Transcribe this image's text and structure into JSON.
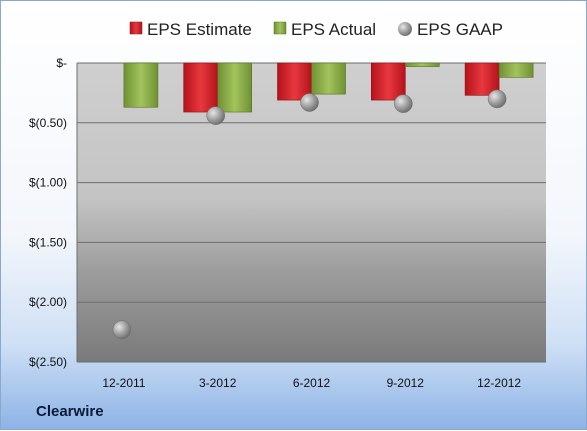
{
  "company_label": "Clearwire",
  "colors": {
    "estimate": "#d8202a",
    "actual": "#8db04a",
    "gaap": "#9a9a9a"
  },
  "chart_data": {
    "type": "bar",
    "categories": [
      "12-2011",
      "3-2012",
      "6-2012",
      "9-2012",
      "12-2012"
    ],
    "series": [
      {
        "name": "EPS Estimate",
        "kind": "bar",
        "values": [
          null,
          -0.41,
          -0.31,
          -0.31,
          -0.27
        ]
      },
      {
        "name": "EPS Actual",
        "kind": "bar",
        "values": [
          -0.37,
          -0.41,
          -0.26,
          -0.03,
          -0.12
        ]
      },
      {
        "name": "EPS GAAP",
        "kind": "marker",
        "values": [
          -2.23,
          -0.44,
          -0.33,
          -0.34,
          -0.3
        ]
      }
    ],
    "ylim": [
      -2.5,
      0
    ],
    "yticks": [
      0,
      -0.5,
      -1.0,
      -1.5,
      -2.0,
      -2.5
    ],
    "ytick_labels": [
      "$-",
      "$(0.50)",
      "$(1.00)",
      "$(1.50)",
      "$(2.00)",
      "$(2.50)"
    ],
    "legend_position": "top",
    "grid": true,
    "title": "",
    "xlabel": "",
    "ylabel": ""
  }
}
